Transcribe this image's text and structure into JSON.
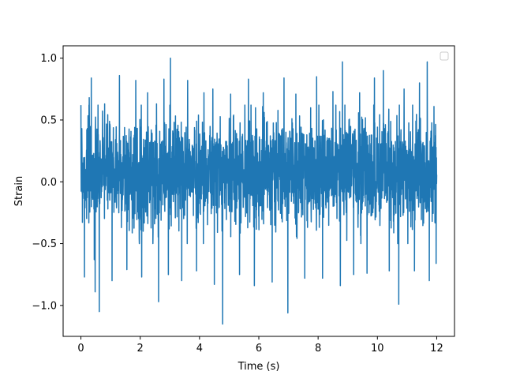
{
  "chart_data": {
    "type": "line",
    "title": "",
    "xlabel": "Time (s)",
    "ylabel": "Strain",
    "xlim": [
      -0.6,
      12.6
    ],
    "ylim": [
      -1.25,
      1.1
    ],
    "xticks": [
      0,
      2,
      4,
      6,
      8,
      10,
      12
    ],
    "xtick_labels": [
      "0",
      "2",
      "4",
      "6",
      "8",
      "10",
      "12"
    ],
    "yticks": [
      -1.0,
      -0.5,
      0.0,
      0.5,
      1.0
    ],
    "ytick_labels": [
      "−1.0",
      "−0.5",
      "0.0",
      "0.5",
      "1.0"
    ],
    "grid": false,
    "legend": {
      "placement": "upper right",
      "entries": []
    },
    "series": [
      {
        "color": "#1f77b4",
        "x_range": [
          0,
          12
        ],
        "band": {
          "typical_min": -0.45,
          "typical_max": 0.6
        },
        "spikes": [
          {
            "x": 0.03,
            "y": 0.43
          },
          {
            "x": 0.12,
            "y": -0.77
          },
          {
            "x": 0.28,
            "y": 0.68
          },
          {
            "x": 0.35,
            "y": 0.84
          },
          {
            "x": 0.45,
            "y": -0.63
          },
          {
            "x": 0.48,
            "y": -0.89
          },
          {
            "x": 0.62,
            "y": -1.05
          },
          {
            "x": 0.8,
            "y": 0.63
          },
          {
            "x": 1.05,
            "y": -0.8
          },
          {
            "x": 1.3,
            "y": 0.86
          },
          {
            "x": 1.55,
            "y": -0.71
          },
          {
            "x": 1.85,
            "y": 0.82
          },
          {
            "x": 2.05,
            "y": -0.77
          },
          {
            "x": 2.25,
            "y": 0.72
          },
          {
            "x": 2.55,
            "y": 0.63
          },
          {
            "x": 2.62,
            "y": -0.97
          },
          {
            "x": 2.8,
            "y": 0.83
          },
          {
            "x": 2.95,
            "y": -0.75
          },
          {
            "x": 3.02,
            "y": 1.0
          },
          {
            "x": 3.4,
            "y": -0.8
          },
          {
            "x": 3.6,
            "y": 0.82
          },
          {
            "x": 3.9,
            "y": -0.72
          },
          {
            "x": 4.15,
            "y": 0.72
          },
          {
            "x": 4.45,
            "y": 0.75
          },
          {
            "x": 4.5,
            "y": -0.83
          },
          {
            "x": 4.78,
            "y": -1.15
          },
          {
            "x": 5.05,
            "y": 0.71
          },
          {
            "x": 5.35,
            "y": -0.75
          },
          {
            "x": 5.65,
            "y": 0.83
          },
          {
            "x": 5.85,
            "y": -0.84
          },
          {
            "x": 6.15,
            "y": 0.72
          },
          {
            "x": 6.45,
            "y": -0.81
          },
          {
            "x": 6.85,
            "y": 0.84
          },
          {
            "x": 6.98,
            "y": -1.06
          },
          {
            "x": 7.25,
            "y": 0.71
          },
          {
            "x": 7.55,
            "y": -0.78
          },
          {
            "x": 7.95,
            "y": 0.85
          },
          {
            "x": 8.15,
            "y": -0.78
          },
          {
            "x": 8.5,
            "y": 0.73
          },
          {
            "x": 8.75,
            "y": -0.84
          },
          {
            "x": 8.82,
            "y": 0.97
          },
          {
            "x": 9.2,
            "y": -0.75
          },
          {
            "x": 9.4,
            "y": 0.72
          },
          {
            "x": 9.65,
            "y": -0.74
          },
          {
            "x": 9.9,
            "y": 0.84
          },
          {
            "x": 10.2,
            "y": 0.9
          },
          {
            "x": 10.4,
            "y": -0.72
          },
          {
            "x": 10.72,
            "y": -0.99
          },
          {
            "x": 10.9,
            "y": 0.75
          },
          {
            "x": 11.25,
            "y": -0.72
          },
          {
            "x": 11.42,
            "y": 0.8
          },
          {
            "x": 11.68,
            "y": 0.97
          },
          {
            "x": 11.75,
            "y": -0.8
          },
          {
            "x": 11.98,
            "y": -0.66
          }
        ]
      }
    ]
  }
}
